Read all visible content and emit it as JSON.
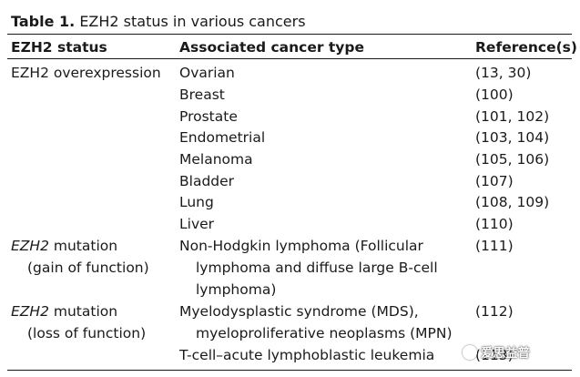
{
  "caption": {
    "label": "Table 1.",
    "title": "EZH2 status in various cancers"
  },
  "columns": {
    "status": "EZH2 status",
    "cancer_type": "Associated cancer type",
    "references": "Reference(s)"
  },
  "groups": {
    "overexpression": {
      "status": "EZH2 overexpression",
      "rows": [
        {
          "cancer": "Ovarian",
          "ref": "(13, 30)"
        },
        {
          "cancer": "Breast",
          "ref": "(100)"
        },
        {
          "cancer": "Prostate",
          "ref": "(101, 102)"
        },
        {
          "cancer": "Endometrial",
          "ref": "(103, 104)"
        },
        {
          "cancer": "Melanoma",
          "ref": "(105, 106)"
        },
        {
          "cancer": "Bladder",
          "ref": "(107)"
        },
        {
          "cancer": "Lung",
          "ref": "(108, 109)"
        },
        {
          "cancer": "Liver",
          "ref": "(110)"
        }
      ]
    },
    "gain": {
      "gene": "EZH2",
      "status_rest": " mutation",
      "status_line2": "(gain of function)",
      "cancer_lines": [
        "Non-Hodgkin lymphoma (Follicular",
        "lymphoma and diffuse large B-cell",
        "lymphoma)"
      ],
      "ref": "(111)"
    },
    "loss": {
      "gene": "EZH2",
      "status_rest": " mutation",
      "status_line2": "(loss of function)",
      "cancer_lines": [
        "Myelodysplastic syndrome (MDS),",
        "myeloproliferative neoplasms (MPN)"
      ],
      "ref": "(112)",
      "cancer_line3": "T-cell–acute lymphoblastic leukemia",
      "ref3": "(113)"
    }
  },
  "watermark": {
    "icon": "wechat-icon",
    "text": "爱思益普"
  }
}
